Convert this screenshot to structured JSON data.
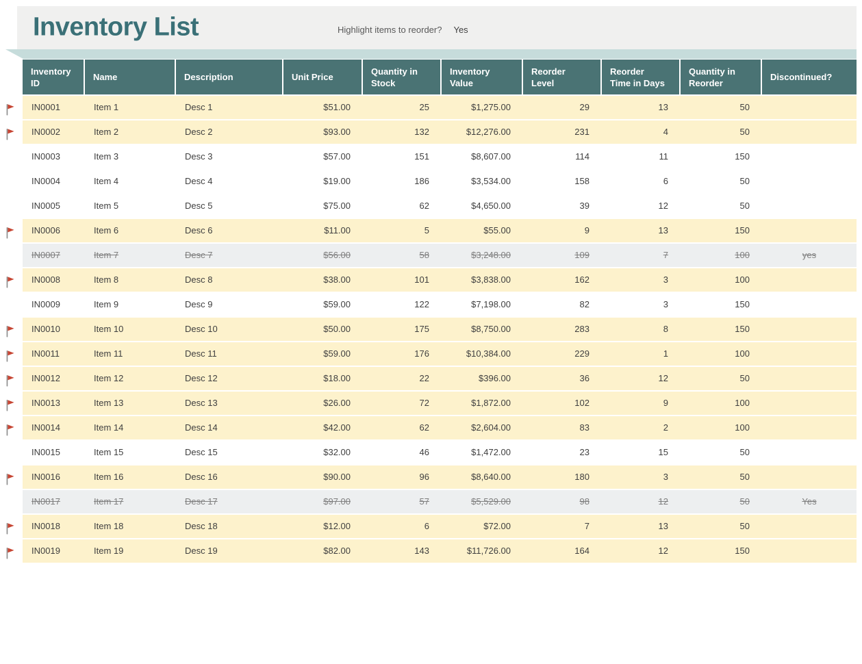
{
  "page": {
    "title": "Inventory List",
    "highlight_label": "Highlight items to reorder?",
    "highlight_value": "Yes"
  },
  "colors": {
    "title_teal": "#3a7077",
    "header_teal": "#4a7374",
    "ribbon_teal": "#c6dcdb",
    "band_gray": "#f0f0ef",
    "row_highlight_yellow": "#fdf2cc",
    "row_discontinued_gray": "#edeff0",
    "text_dark": "#3f3f3f",
    "text_muted": "#7f7f7f",
    "flag_red": "#c74634"
  },
  "table": {
    "columns": [
      {
        "label": "Inventory ID",
        "slug": "inventory-id",
        "align": "left"
      },
      {
        "label": "Name",
        "slug": "name",
        "align": "left"
      },
      {
        "label": "Description",
        "slug": "description",
        "align": "left"
      },
      {
        "label": "Unit Price",
        "slug": "unit-price",
        "align": "right"
      },
      {
        "label": "Quantity in Stock",
        "slug": "quantity-in-stock",
        "align": "right"
      },
      {
        "label": "Inventory Value",
        "slug": "inventory-value",
        "align": "right"
      },
      {
        "label": "Reorder Level",
        "slug": "reorder-level",
        "align": "right"
      },
      {
        "label": "Reorder Time in Days",
        "slug": "reorder-time-in-days",
        "align": "right"
      },
      {
        "label": "Quantity in Reorder",
        "slug": "quantity-in-reorder",
        "align": "right"
      },
      {
        "label": "Discontinued?",
        "slug": "discontinued",
        "align": "center"
      }
    ],
    "rows": [
      {
        "flagged": true,
        "state": "reorder",
        "cells": [
          "IN0001",
          "Item 1",
          "Desc 1",
          "$51.00",
          "25",
          "$1,275.00",
          "29",
          "13",
          "50",
          ""
        ]
      },
      {
        "flagged": true,
        "state": "reorder",
        "cells": [
          "IN0002",
          "Item 2",
          "Desc 2",
          "$93.00",
          "132",
          "$12,276.00",
          "231",
          "4",
          "50",
          ""
        ]
      },
      {
        "flagged": false,
        "state": "normal",
        "cells": [
          "IN0003",
          "Item 3",
          "Desc 3",
          "$57.00",
          "151",
          "$8,607.00",
          "114",
          "11",
          "150",
          ""
        ]
      },
      {
        "flagged": false,
        "state": "normal",
        "cells": [
          "IN0004",
          "Item 4",
          "Desc 4",
          "$19.00",
          "186",
          "$3,534.00",
          "158",
          "6",
          "50",
          ""
        ]
      },
      {
        "flagged": false,
        "state": "normal",
        "cells": [
          "IN0005",
          "Item 5",
          "Desc 5",
          "$75.00",
          "62",
          "$4,650.00",
          "39",
          "12",
          "50",
          ""
        ]
      },
      {
        "flagged": true,
        "state": "reorder",
        "cells": [
          "IN0006",
          "Item 6",
          "Desc 6",
          "$11.00",
          "5",
          "$55.00",
          "9",
          "13",
          "150",
          ""
        ]
      },
      {
        "flagged": false,
        "state": "discontinued",
        "cells": [
          "IN0007",
          "Item 7",
          "Desc 7",
          "$56.00",
          "58",
          "$3,248.00",
          "109",
          "7",
          "100",
          "yes"
        ]
      },
      {
        "flagged": true,
        "state": "reorder",
        "cells": [
          "IN0008",
          "Item 8",
          "Desc 8",
          "$38.00",
          "101",
          "$3,838.00",
          "162",
          "3",
          "100",
          ""
        ]
      },
      {
        "flagged": false,
        "state": "normal",
        "cells": [
          "IN0009",
          "Item 9",
          "Desc 9",
          "$59.00",
          "122",
          "$7,198.00",
          "82",
          "3",
          "150",
          ""
        ]
      },
      {
        "flagged": true,
        "state": "reorder",
        "cells": [
          "IN0010",
          "Item 10",
          "Desc 10",
          "$50.00",
          "175",
          "$8,750.00",
          "283",
          "8",
          "150",
          ""
        ]
      },
      {
        "flagged": true,
        "state": "reorder",
        "cells": [
          "IN0011",
          "Item 11",
          "Desc 11",
          "$59.00",
          "176",
          "$10,384.00",
          "229",
          "1",
          "100",
          ""
        ]
      },
      {
        "flagged": true,
        "state": "reorder",
        "cells": [
          "IN0012",
          "Item 12",
          "Desc 12",
          "$18.00",
          "22",
          "$396.00",
          "36",
          "12",
          "50",
          ""
        ]
      },
      {
        "flagged": true,
        "state": "reorder",
        "cells": [
          "IN0013",
          "Item 13",
          "Desc 13",
          "$26.00",
          "72",
          "$1,872.00",
          "102",
          "9",
          "100",
          ""
        ]
      },
      {
        "flagged": true,
        "state": "reorder",
        "cells": [
          "IN0014",
          "Item 14",
          "Desc 14",
          "$42.00",
          "62",
          "$2,604.00",
          "83",
          "2",
          "100",
          ""
        ]
      },
      {
        "flagged": false,
        "state": "normal",
        "cells": [
          "IN0015",
          "Item 15",
          "Desc 15",
          "$32.00",
          "46",
          "$1,472.00",
          "23",
          "15",
          "50",
          ""
        ]
      },
      {
        "flagged": true,
        "state": "reorder",
        "cells": [
          "IN0016",
          "Item 16",
          "Desc 16",
          "$90.00",
          "96",
          "$8,640.00",
          "180",
          "3",
          "50",
          ""
        ]
      },
      {
        "flagged": false,
        "state": "discontinued",
        "cells": [
          "IN0017",
          "Item 17",
          "Desc 17",
          "$97.00",
          "57",
          "$5,529.00",
          "98",
          "12",
          "50",
          "Yes"
        ]
      },
      {
        "flagged": true,
        "state": "reorder",
        "cells": [
          "IN0018",
          "Item 18",
          "Desc 18",
          "$12.00",
          "6",
          "$72.00",
          "7",
          "13",
          "50",
          ""
        ]
      },
      {
        "flagged": true,
        "state": "reorder",
        "cells": [
          "IN0019",
          "Item 19",
          "Desc 19",
          "$82.00",
          "143",
          "$11,726.00",
          "164",
          "12",
          "150",
          ""
        ]
      }
    ]
  }
}
